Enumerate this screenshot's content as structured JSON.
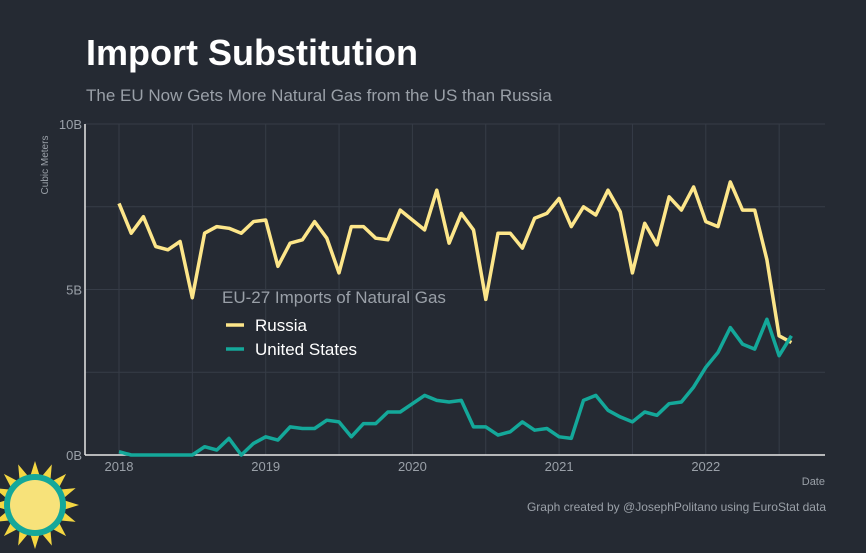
{
  "chart_data": {
    "type": "line",
    "title": "Import Substitution",
    "subtitle": "The EU Now Gets More Natural Gas from the US than Russia",
    "xlabel": "Date",
    "ylabel": "Cubic Meters",
    "caption": "Graph created by @JosephPolitano using EuroStat data",
    "legend_title": "EU-27 Imports of Natural Gas",
    "legend_placement": "center-left",
    "x_start": "2018-01",
    "x_frequency": "monthly",
    "x_ticks": [
      "2018",
      "2019",
      "2020",
      "2021",
      "2022"
    ],
    "y_ticks": [
      "0B",
      "5B",
      "10B"
    ],
    "ylim": [
      0,
      10
    ],
    "y_unit": "billion cubic meters",
    "series": [
      {
        "name": "Russia",
        "color": "#fde68a",
        "values": [
          7.6,
          6.7,
          7.2,
          6.3,
          6.2,
          6.45,
          4.75,
          6.7,
          6.9,
          6.85,
          6.7,
          7.05,
          7.1,
          5.7,
          6.4,
          6.5,
          7.05,
          6.55,
          5.5,
          6.9,
          6.9,
          6.55,
          6.5,
          7.4,
          7.1,
          6.8,
          8.0,
          6.4,
          7.3,
          6.8,
          4.7,
          6.7,
          6.7,
          6.25,
          7.15,
          7.3,
          7.75,
          6.9,
          7.5,
          7.25,
          8.0,
          7.35,
          5.5,
          7.0,
          6.35,
          7.8,
          7.4,
          8.1,
          7.05,
          6.9,
          8.25,
          7.4,
          7.4,
          5.9,
          3.6,
          3.4
        ]
      },
      {
        "name": "United States",
        "color": "#14a89a",
        "values": [
          0.1,
          0.0,
          0.0,
          0.0,
          0.0,
          0.0,
          0.0,
          0.25,
          0.15,
          0.5,
          0.0,
          0.35,
          0.55,
          0.45,
          0.85,
          0.8,
          0.8,
          1.05,
          1.0,
          0.55,
          0.95,
          0.95,
          1.3,
          1.3,
          1.55,
          1.8,
          1.65,
          1.6,
          1.65,
          0.85,
          0.85,
          0.6,
          0.7,
          1.0,
          0.75,
          0.8,
          0.55,
          0.5,
          1.65,
          1.8,
          1.35,
          1.15,
          1.0,
          1.3,
          1.2,
          1.55,
          1.6,
          2.05,
          2.65,
          3.1,
          3.85,
          3.35,
          3.2,
          4.1,
          3.0,
          3.6
        ]
      }
    ]
  }
}
